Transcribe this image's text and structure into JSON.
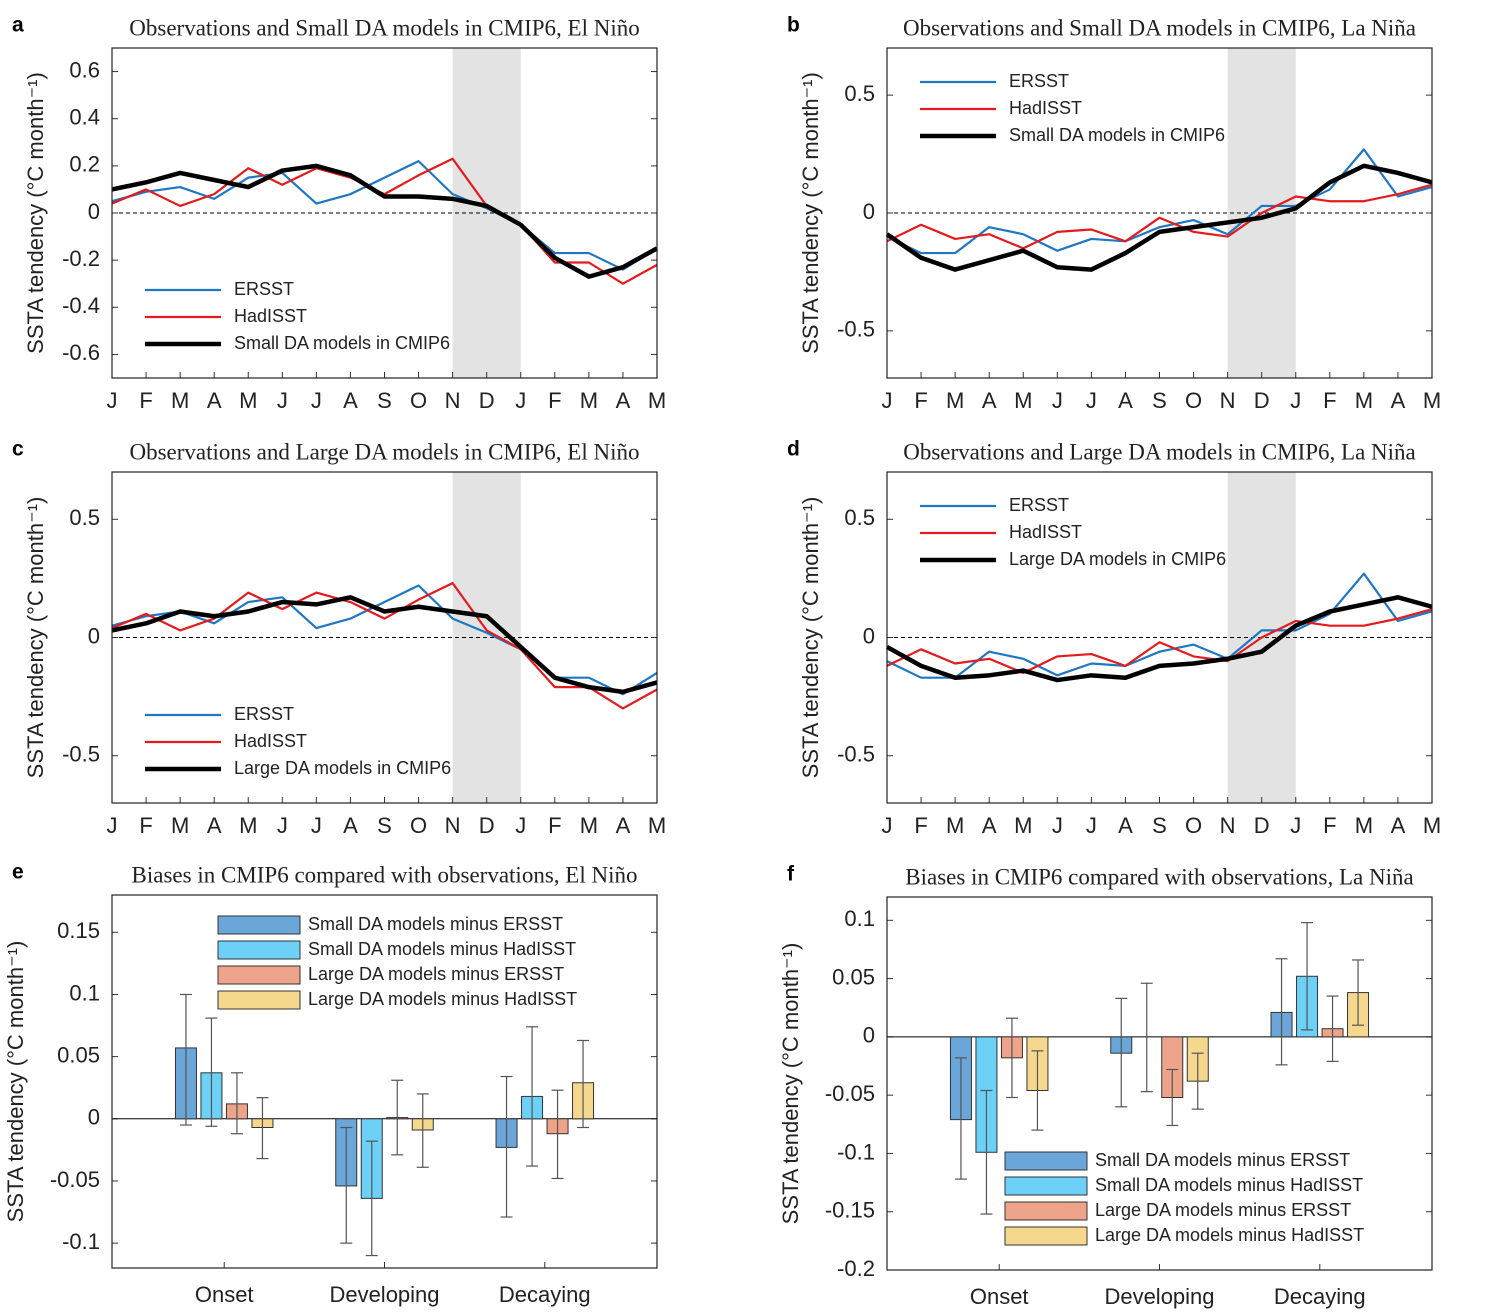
{
  "chart_data": [
    {
      "type": "line",
      "panel": "a",
      "title": "Observations and Small DA models in CMIP6, El Niño",
      "y_label": "SSTA tendency (°C month⁻¹)",
      "categories": [
        "J",
        "F",
        "M",
        "A",
        "M",
        "J",
        "J",
        "A",
        "S",
        "O",
        "N",
        "D",
        "J",
        "F",
        "M",
        "A",
        "M"
      ],
      "shade": [
        10,
        12
      ],
      "ylim": [
        -0.7,
        0.7
      ],
      "yticks": [
        -0.6,
        -0.4,
        -0.2,
        0,
        0.2,
        0.4,
        0.6
      ],
      "legend": "lower left",
      "series": [
        {
          "name": "ERSST",
          "color": "#1f77c4",
          "values": [
            0.05,
            0.09,
            0.11,
            0.06,
            0.15,
            0.17,
            0.04,
            0.08,
            0.15,
            0.22,
            0.08,
            0.02,
            -0.05,
            -0.17,
            -0.17,
            -0.24,
            -0.15
          ]
        },
        {
          "name": "HadISST",
          "color": "#e41a1c",
          "values": [
            0.04,
            0.1,
            0.03,
            0.08,
            0.19,
            0.12,
            0.19,
            0.15,
            0.08,
            0.16,
            0.23,
            0.03,
            -0.05,
            -0.21,
            -0.21,
            -0.3,
            -0.22
          ]
        },
        {
          "name": "Small DA models in CMIP6",
          "color": "#000000",
          "values": [
            0.1,
            0.13,
            0.17,
            0.14,
            0.11,
            0.18,
            0.2,
            0.16,
            0.07,
            0.07,
            0.06,
            0.03,
            -0.05,
            -0.19,
            -0.27,
            -0.23,
            -0.15
          ]
        }
      ]
    },
    {
      "type": "line",
      "panel": "b",
      "title": "Observations and Small DA models in CMIP6, La Niña",
      "y_label": "SSTA tendency (°C month⁻¹)",
      "categories": [
        "J",
        "F",
        "M",
        "A",
        "M",
        "J",
        "J",
        "A",
        "S",
        "O",
        "N",
        "D",
        "J",
        "F",
        "M",
        "A",
        "M"
      ],
      "shade": [
        10,
        12
      ],
      "ylim": [
        -0.7,
        0.7
      ],
      "yticks": [
        -0.5,
        0,
        0.5
      ],
      "legend": "upper left",
      "series": [
        {
          "name": "ERSST",
          "color": "#1f77c4",
          "values": [
            -0.1,
            -0.17,
            -0.17,
            -0.06,
            -0.09,
            -0.16,
            -0.11,
            -0.12,
            -0.06,
            -0.03,
            -0.09,
            0.03,
            0.03,
            0.1,
            0.27,
            0.07,
            0.11
          ]
        },
        {
          "name": "HadISST",
          "color": "#e41a1c",
          "values": [
            -0.12,
            -0.05,
            -0.11,
            -0.09,
            -0.15,
            -0.08,
            -0.07,
            -0.12,
            -0.02,
            -0.08,
            -0.1,
            0.0,
            0.07,
            0.05,
            0.05,
            0.08,
            0.12
          ]
        },
        {
          "name": "Small DA models in CMIP6",
          "color": "#000000",
          "values": [
            -0.09,
            -0.19,
            -0.24,
            -0.2,
            -0.16,
            -0.23,
            -0.24,
            -0.17,
            -0.08,
            -0.06,
            -0.04,
            -0.02,
            0.02,
            0.13,
            0.2,
            0.17,
            0.13
          ]
        }
      ]
    },
    {
      "type": "line",
      "panel": "c",
      "title": "Observations and Large DA models in CMIP6, El Niño",
      "y_label": "SSTA tendency (°C month⁻¹)",
      "categories": [
        "J",
        "F",
        "M",
        "A",
        "M",
        "J",
        "J",
        "A",
        "S",
        "O",
        "N",
        "D",
        "J",
        "F",
        "M",
        "A",
        "M"
      ],
      "shade": [
        10,
        12
      ],
      "ylim": [
        -0.7,
        0.7
      ],
      "yticks": [
        -0.5,
        0,
        0.5
      ],
      "legend": "lower left",
      "series": [
        {
          "name": "ERSST",
          "color": "#1f77c4",
          "values": [
            0.05,
            0.09,
            0.11,
            0.06,
            0.15,
            0.17,
            0.04,
            0.08,
            0.15,
            0.22,
            0.08,
            0.02,
            -0.05,
            -0.17,
            -0.17,
            -0.24,
            -0.15
          ]
        },
        {
          "name": "HadISST",
          "color": "#e41a1c",
          "values": [
            0.04,
            0.1,
            0.03,
            0.08,
            0.19,
            0.12,
            0.19,
            0.15,
            0.08,
            0.16,
            0.23,
            0.03,
            -0.05,
            -0.21,
            -0.21,
            -0.3,
            -0.22
          ]
        },
        {
          "name": "Large DA models in CMIP6",
          "color": "#000000",
          "values": [
            0.03,
            0.06,
            0.11,
            0.09,
            0.11,
            0.15,
            0.14,
            0.17,
            0.11,
            0.13,
            0.11,
            0.09,
            -0.04,
            -0.17,
            -0.21,
            -0.23,
            -0.19
          ]
        }
      ]
    },
    {
      "type": "line",
      "panel": "d",
      "title": "Observations and Large DA models in CMIP6, La Niña",
      "y_label": "SSTA tendency (°C month⁻¹)",
      "categories": [
        "J",
        "F",
        "M",
        "A",
        "M",
        "J",
        "J",
        "A",
        "S",
        "O",
        "N",
        "D",
        "J",
        "F",
        "M",
        "A",
        "M"
      ],
      "shade": [
        10,
        12
      ],
      "ylim": [
        -0.7,
        0.7
      ],
      "yticks": [
        -0.5,
        0,
        0.5
      ],
      "legend": "upper left",
      "series": [
        {
          "name": "ERSST",
          "color": "#1f77c4",
          "values": [
            -0.1,
            -0.17,
            -0.17,
            -0.06,
            -0.09,
            -0.16,
            -0.11,
            -0.12,
            -0.06,
            -0.03,
            -0.09,
            0.03,
            0.03,
            0.1,
            0.27,
            0.07,
            0.11
          ]
        },
        {
          "name": "HadISST",
          "color": "#e41a1c",
          "values": [
            -0.12,
            -0.05,
            -0.11,
            -0.09,
            -0.15,
            -0.08,
            -0.07,
            -0.12,
            -0.02,
            -0.08,
            -0.1,
            0.0,
            0.07,
            0.05,
            0.05,
            0.08,
            0.12
          ]
        },
        {
          "name": "Large DA models in CMIP6",
          "color": "#000000",
          "values": [
            -0.04,
            -0.12,
            -0.17,
            -0.16,
            -0.14,
            -0.18,
            -0.16,
            -0.17,
            -0.12,
            -0.11,
            -0.09,
            -0.06,
            0.05,
            0.11,
            0.14,
            0.17,
            0.13
          ]
        }
      ]
    },
    {
      "type": "bar",
      "panel": "e",
      "title": "Biases in CMIP6 compared with observations, El Niño",
      "y_label": "SSTA tendency (°C month⁻¹)",
      "categories": [
        "Onset",
        "Developing",
        "Decaying"
      ],
      "ylim": [
        -0.12,
        0.18
      ],
      "yticks": [
        -0.1,
        -0.05,
        0,
        0.05,
        0.1,
        0.15
      ],
      "legend": "upper right",
      "series": [
        {
          "name": "Small DA models minus ERSST",
          "color": "#6aa6d8",
          "values": [
            0.057,
            -0.054,
            -0.023
          ],
          "lower": [
            -0.005,
            -0.1,
            -0.079
          ],
          "upper": [
            0.1,
            -0.007,
            0.034
          ]
        },
        {
          "name": "Small DA models minus HadISST",
          "color": "#6cd0f7",
          "values": [
            0.037,
            -0.064,
            0.018
          ],
          "lower": [
            -0.006,
            -0.11,
            -0.038
          ],
          "upper": [
            0.081,
            -0.018,
            0.074
          ]
        },
        {
          "name": "Large DA models minus ERSST",
          "color": "#eea48a",
          "values": [
            0.012,
            0.001,
            -0.012
          ],
          "lower": [
            -0.012,
            -0.029,
            -0.048
          ],
          "upper": [
            0.037,
            0.031,
            0.023
          ]
        },
        {
          "name": "Large DA models minus HadISST",
          "color": "#f6d78e",
          "values": [
            -0.007,
            -0.009,
            0.029
          ],
          "lower": [
            -0.032,
            -0.039,
            -0.007
          ],
          "upper": [
            0.017,
            0.02,
            0.063
          ]
        }
      ]
    },
    {
      "type": "bar",
      "panel": "f",
      "title": "Biases in CMIP6 compared with observations, La Niña",
      "y_label": "SSTA tendency (°C month⁻¹)",
      "categories": [
        "Onset",
        "Developing",
        "Decaying"
      ],
      "ylim": [
        -0.2,
        0.12
      ],
      "yticks": [
        -0.2,
        -0.15,
        -0.1,
        -0.05,
        0,
        0.05,
        0.1
      ],
      "legend": "lower right",
      "series": [
        {
          "name": "Small DA models minus ERSST",
          "color": "#6aa6d8",
          "values": [
            -0.071,
            -0.014,
            0.021
          ],
          "lower": [
            -0.122,
            -0.06,
            -0.024
          ],
          "upper": [
            -0.018,
            0.033,
            0.067
          ]
        },
        {
          "name": "Small DA models minus HadISST",
          "color": "#6cd0f7",
          "values": [
            -0.099,
            0.0,
            0.052
          ],
          "lower": [
            -0.152,
            -0.047,
            0.006
          ],
          "upper": [
            -0.046,
            0.046,
            0.098
          ]
        },
        {
          "name": "Large DA models minus ERSST",
          "color": "#eea48a",
          "values": [
            -0.018,
            -0.052,
            0.007
          ],
          "lower": [
            -0.052,
            -0.076,
            -0.021
          ],
          "upper": [
            0.016,
            -0.028,
            0.035
          ]
        },
        {
          "name": "Large DA models minus HadISST",
          "color": "#f6d78e",
          "values": [
            -0.046,
            -0.038,
            0.038
          ],
          "lower": [
            -0.08,
            -0.062,
            0.01
          ],
          "upper": [
            -0.012,
            -0.014,
            0.066
          ]
        }
      ]
    }
  ]
}
